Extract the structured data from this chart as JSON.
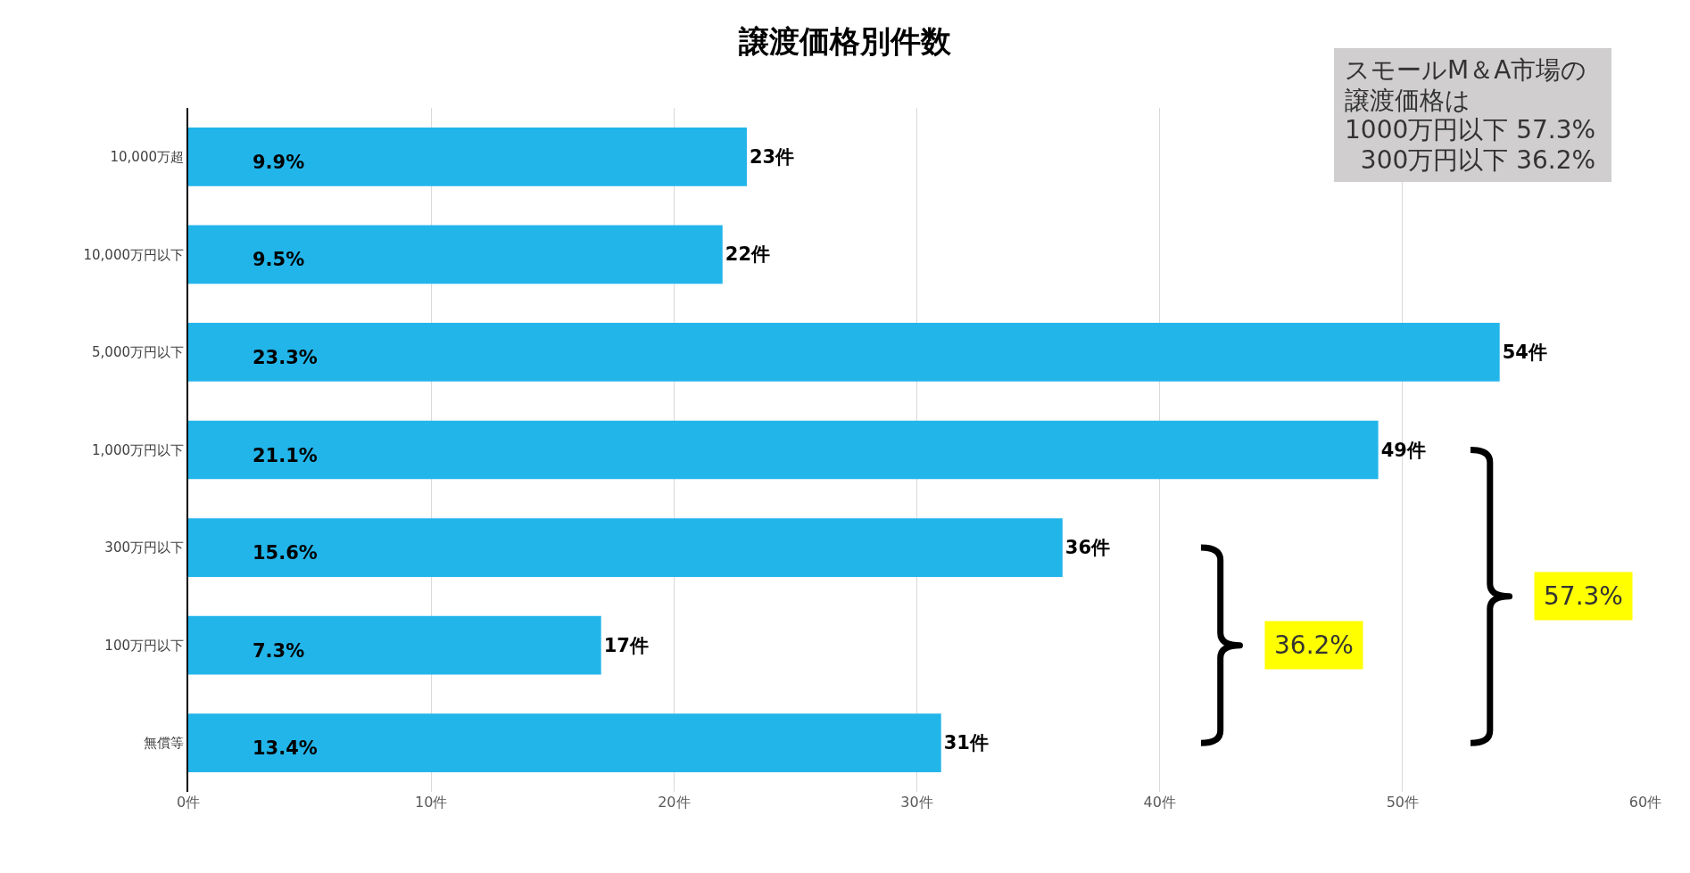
{
  "chart_data": {
    "type": "bar",
    "orientation": "horizontal",
    "title": "譲渡価格別件数",
    "categories": [
      "10,000万超",
      "10,000万円以下",
      "5,000万円以下",
      "1,000万円以下",
      "300万円以下",
      "100万円以下",
      "無償等"
    ],
    "values": [
      23,
      22,
      54,
      49,
      36,
      17,
      31
    ],
    "value_labels": [
      "23件",
      "22件",
      "54件",
      "49件",
      "36件",
      "17件",
      "31件"
    ],
    "color": "#22b5ea",
    "xlim": [
      0,
      60
    ],
    "xticks": [
      {
        "value": 0,
        "label": "0件"
      },
      {
        "value": 10,
        "label": "10件"
      },
      {
        "value": 20,
        "label": "20件"
      },
      {
        "value": 30,
        "label": "30件"
      },
      {
        "value": 40,
        "label": "40件"
      },
      {
        "value": 50,
        "label": "50件"
      },
      {
        "value": 60,
        "label": "60件"
      }
    ],
    "grid": "x",
    "annotations": [
      "9.9%",
      "9.5%",
      "23.3%",
      "21.1%",
      "15.6%",
      "7.3%",
      "13.4%",
      "スモールM＆A市場の譲渡価格は\n1000万円以下 57.3%\n  300万円以下 36.2%",
      "36.2%",
      "57.3%"
    ]
  }
}
